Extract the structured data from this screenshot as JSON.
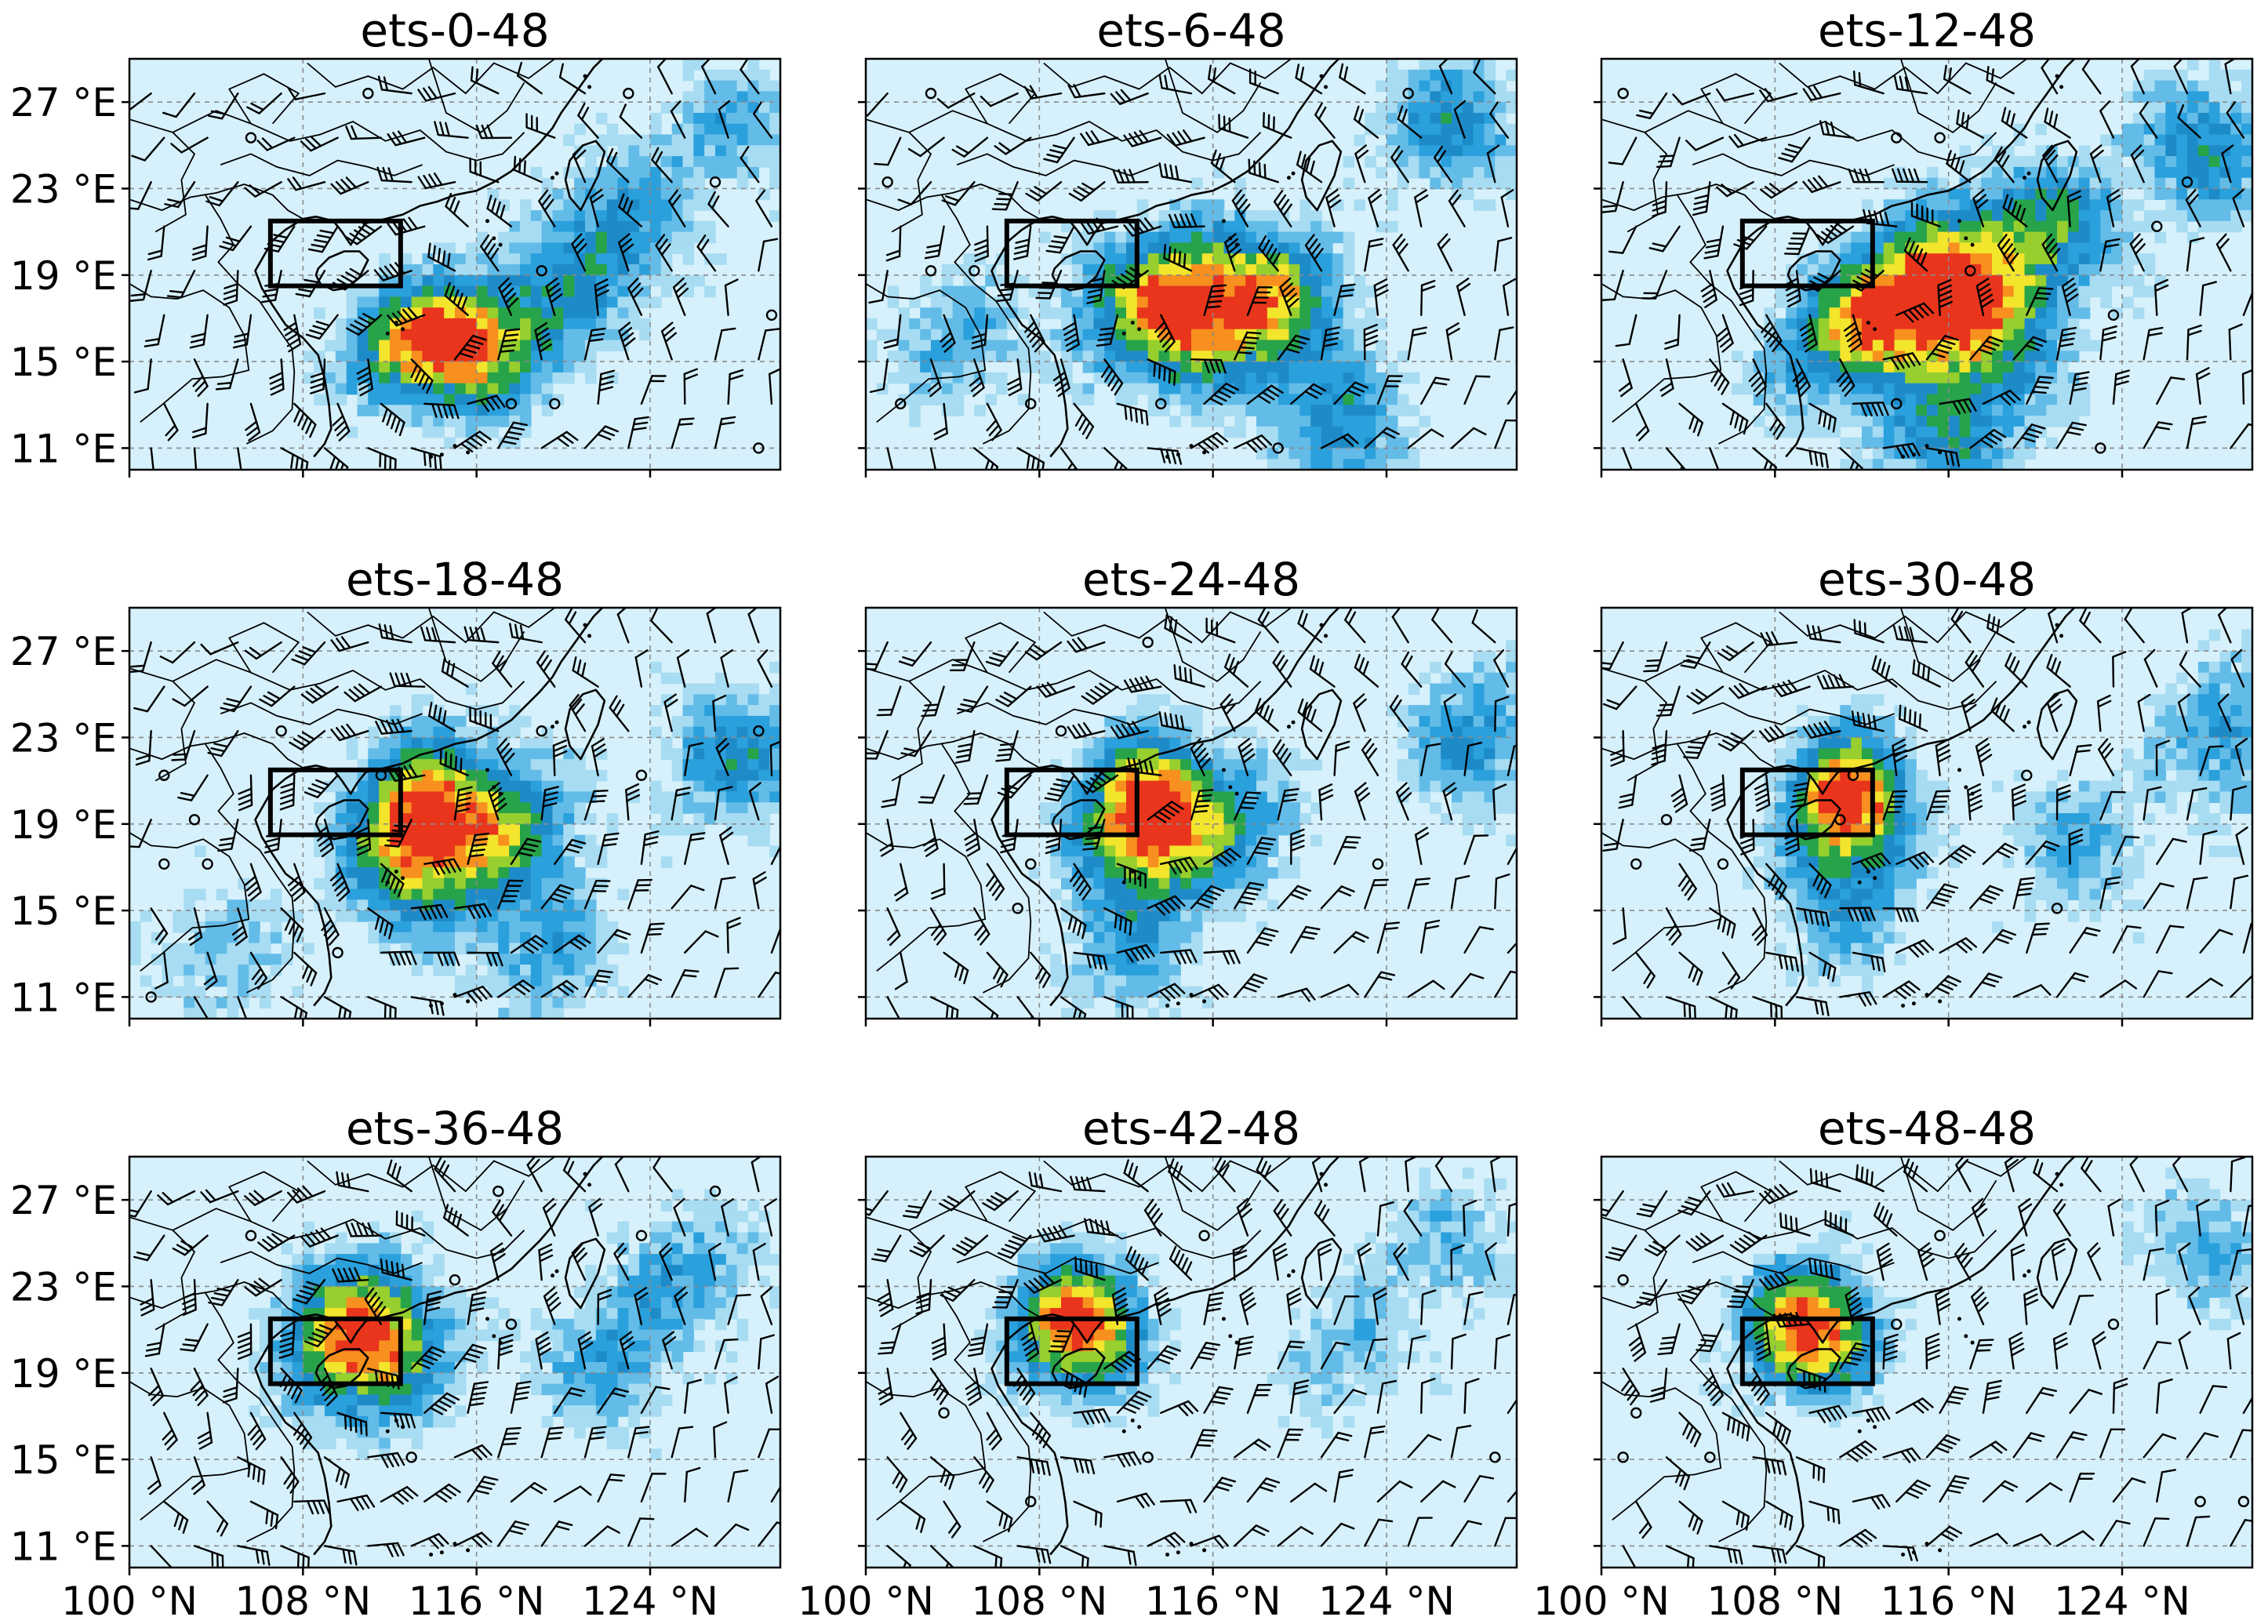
{
  "panels": [
    {
      "title": "ets-0-48",
      "center": [
        113.6,
        15.9
      ],
      "peak": 0.85,
      "spread": [
        2.6,
        2.0
      ],
      "rot": -10,
      "bands": [
        [
          117,
          15.5,
          0.45
        ],
        [
          121,
          19,
          0.35
        ],
        [
          128,
          26,
          0.35
        ],
        [
          123,
          22,
          0.3
        ]
      ],
      "show_y": true,
      "show_x": false
    },
    {
      "title": "ets-6-48",
      "center": [
        114.2,
        17.4
      ],
      "peak": 0.95,
      "spread": [
        3.0,
        2.6
      ],
      "rot": 0,
      "bands": [
        [
          119,
          18,
          0.55
        ],
        [
          127,
          26,
          0.5
        ],
        [
          122,
          12,
          0.45
        ],
        [
          104,
          16,
          0.35
        ]
      ],
      "show_y": false,
      "show_x": false
    },
    {
      "title": "ets-12-48",
      "center": [
        113.6,
        17.8
      ],
      "peak": 1.0,
      "spread": [
        4.2,
        2.2
      ],
      "rot": -35,
      "bands": [
        [
          118,
          16,
          0.55
        ],
        [
          121,
          21,
          0.45
        ],
        [
          128,
          25,
          0.5
        ],
        [
          116,
          11,
          0.45
        ]
      ],
      "show_y": false,
      "show_x": false
    },
    {
      "title": "ets-18-48",
      "center": [
        113.4,
        18.8
      ],
      "peak": 1.0,
      "spread": [
        2.4,
        3.0
      ],
      "rot": 10,
      "bands": [
        [
          118,
          19,
          0.45
        ],
        [
          128,
          22,
          0.5
        ],
        [
          119,
          13,
          0.35
        ],
        [
          104,
          13,
          0.3
        ]
      ],
      "show_y": true,
      "show_x": false
    },
    {
      "title": "ets-24-48",
      "center": [
        112.8,
        19.4
      ],
      "peak": 1.0,
      "spread": [
        2.2,
        2.6
      ],
      "rot": 0,
      "bands": [
        [
          117,
          19,
          0.4
        ],
        [
          128,
          23,
          0.45
        ],
        [
          112,
          13,
          0.35
        ]
      ],
      "show_y": false,
      "show_x": false
    },
    {
      "title": "ets-30-48",
      "center": [
        111.4,
        20.2
      ],
      "peak": 1.0,
      "spread": [
        2.0,
        2.3
      ],
      "rot": 0,
      "bands": [
        [
          122,
          18,
          0.35
        ],
        [
          129,
          23,
          0.45
        ],
        [
          111,
          15,
          0.35
        ]
      ],
      "show_y": false,
      "show_x": false
    },
    {
      "title": "ets-36-48",
      "center": [
        110.8,
        20.5
      ],
      "peak": 1.0,
      "spread": [
        2.6,
        2.6
      ],
      "rot": 0,
      "bands": [
        [
          122,
          19.5,
          0.4
        ],
        [
          126,
          24,
          0.35
        ]
      ],
      "show_y": true,
      "show_x": true
    },
    {
      "title": "ets-42-48",
      "center": [
        109.8,
        21.2
      ],
      "peak": 1.0,
      "spread": [
        2.2,
        2.2
      ],
      "rot": 0,
      "bands": [
        [
          122,
          20,
          0.3
        ],
        [
          127,
          25,
          0.3
        ]
      ],
      "show_y": false,
      "show_x": true
    },
    {
      "title": "ets-48-48",
      "center": [
        109.6,
        21.0
      ],
      "peak": 1.0,
      "spread": [
        2.2,
        2.2
      ],
      "rot": 0,
      "bands": [
        [
          128,
          25,
          0.35
        ]
      ],
      "show_y": false,
      "show_x": true
    }
  ],
  "map_extent": {
    "lon": [
      100,
      130
    ],
    "lat": [
      10,
      29
    ]
  },
  "box": {
    "lon": [
      106.5,
      112.5
    ],
    "lat": [
      18.5,
      21.5
    ]
  },
  "y_ticks": [
    {
      "value": 27,
      "label": "27 °E"
    },
    {
      "value": 23,
      "label": "23 °E"
    },
    {
      "value": 19,
      "label": "19 °E"
    },
    {
      "value": 15,
      "label": "15 °E"
    },
    {
      "value": 11,
      "label": "11 °E"
    }
  ],
  "x_ticks": [
    {
      "value": 100,
      "label": "100 °N"
    },
    {
      "value": 108,
      "label": "108 °N"
    },
    {
      "value": 116,
      "label": "116 °N"
    },
    {
      "value": 124,
      "label": "124 °N"
    }
  ],
  "colors": {
    "levels": [
      "#d6f1fb",
      "#a7dcf2",
      "#63bce8",
      "#2aa0dc",
      "#1e8bc9",
      "#27a34a",
      "#96cf2e",
      "#f3e42c",
      "#f7901e",
      "#e8351c"
    ],
    "line": "#000000"
  }
}
